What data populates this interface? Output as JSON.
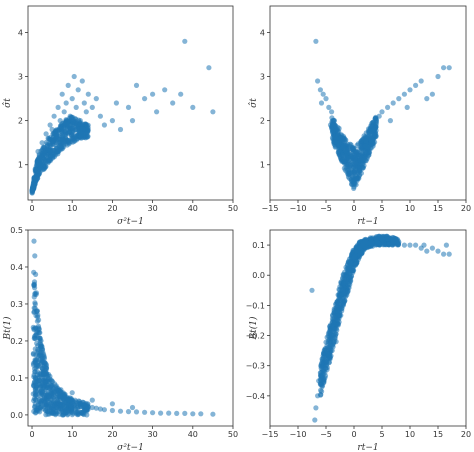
{
  "chart_data": [
    {
      "type": "scatter",
      "xlabel": "σ²t−1",
      "ylabel": "σ̂t",
      "xlim": [
        -1,
        50
      ],
      "ylim": [
        0.2,
        4.6
      ],
      "xticks": [
        0,
        10,
        20,
        30,
        40,
        50
      ],
      "yticks": [
        1,
        2,
        3,
        4
      ],
      "grid": false,
      "color": "#1f77b4",
      "points": [
        [
          0.3,
          0.5
        ],
        [
          0.5,
          0.7
        ],
        [
          0.8,
          0.9
        ],
        [
          1.2,
          1.0
        ],
        [
          1.5,
          1.3
        ],
        [
          2,
          1.1
        ],
        [
          2.5,
          1.5
        ],
        [
          3,
          1.4
        ],
        [
          3.5,
          1.7
        ],
        [
          4,
          1.6
        ],
        [
          4.5,
          1.9
        ],
        [
          5,
          1.8
        ],
        [
          5.5,
          2.1
        ],
        [
          6,
          1.7
        ],
        [
          6.5,
          2.3
        ],
        [
          7,
          2.0
        ],
        [
          7.5,
          2.6
        ],
        [
          8,
          2.2
        ],
        [
          8.5,
          2.4
        ],
        [
          9,
          2.8
        ],
        [
          9.5,
          2.1
        ],
        [
          10,
          2.5
        ],
        [
          10.5,
          3.0
        ],
        [
          11,
          2.3
        ],
        [
          11.5,
          2.7
        ],
        [
          12,
          2.0
        ],
        [
          12.5,
          2.9
        ],
        [
          13,
          2.4
        ],
        [
          13.5,
          2.2
        ],
        [
          14,
          2.6
        ],
        [
          15,
          2.3
        ],
        [
          16,
          2.5
        ],
        [
          17,
          2.1
        ],
        [
          18,
          1.9
        ],
        [
          20,
          2.0
        ],
        [
          21,
          2.4
        ],
        [
          22,
          1.8
        ],
        [
          24,
          2.3
        ],
        [
          25,
          2.0
        ],
        [
          26,
          2.8
        ],
        [
          28,
          2.5
        ],
        [
          30,
          2.6
        ],
        [
          31,
          2.2
        ],
        [
          33,
          2.7
        ],
        [
          35,
          2.4
        ],
        [
          37,
          2.6
        ],
        [
          38,
          3.8
        ],
        [
          40,
          2.3
        ],
        [
          44,
          3.2
        ],
        [
          45,
          2.2
        ]
      ],
      "dense_band": [
        [
          0,
          0.4
        ],
        [
          1,
          1.0
        ],
        [
          2,
          1.3
        ],
        [
          4,
          1.6
        ],
        [
          6,
          1.8
        ],
        [
          8,
          2.0
        ],
        [
          10,
          2.1
        ],
        [
          12,
          2.0
        ],
        [
          14,
          1.9
        ]
      ],
      "dense_band_low": [
        [
          0,
          0.35
        ],
        [
          1,
          0.6
        ],
        [
          2,
          0.8
        ],
        [
          4,
          1.0
        ],
        [
          6,
          1.2
        ],
        [
          8,
          1.4
        ],
        [
          10,
          1.5
        ],
        [
          12,
          1.6
        ],
        [
          14,
          1.6
        ]
      ]
    },
    {
      "type": "scatter",
      "xlabel": "rt−1",
      "ylabel": "σ̂t",
      "xlim": [
        -15,
        20
      ],
      "ylim": [
        0.2,
        4.6
      ],
      "xticks": [
        -15,
        -10,
        -5,
        0,
        5,
        10,
        15,
        20
      ],
      "yticks": [
        1,
        2,
        3,
        4
      ],
      "grid": false,
      "color": "#1f77b4",
      "points": [
        [
          -6.8,
          3.8
        ],
        [
          -6.5,
          2.9
        ],
        [
          -6,
          2.7
        ],
        [
          -5.5,
          2.6
        ],
        [
          -5,
          2.5
        ],
        [
          -4.5,
          2.3
        ],
        [
          -4,
          2.2
        ],
        [
          -3.5,
          2.0
        ],
        [
          -3,
          1.8
        ],
        [
          -2.5,
          1.6
        ],
        [
          -2,
          1.4
        ],
        [
          -1.5,
          1.2
        ],
        [
          -1,
          1.0
        ],
        [
          -0.5,
          0.8
        ],
        [
          0,
          0.5
        ],
        [
          0.5,
          0.7
        ],
        [
          1,
          0.9
        ],
        [
          1.5,
          1.1
        ],
        [
          2,
          1.3
        ],
        [
          2.5,
          1.4
        ],
        [
          3,
          1.6
        ],
        [
          3.5,
          1.8
        ],
        [
          4,
          2.0
        ],
        [
          5,
          2.2
        ],
        [
          6,
          2.3
        ],
        [
          7,
          2.4
        ],
        [
          8,
          2.5
        ],
        [
          9,
          2.6
        ],
        [
          10,
          2.7
        ],
        [
          11,
          2.8
        ],
        [
          12,
          2.9
        ],
        [
          13,
          2.5
        ],
        [
          14,
          2.6
        ],
        [
          15,
          3.0
        ],
        [
          16,
          3.2
        ],
        [
          17,
          3.2
        ],
        [
          -5.8,
          2.4
        ],
        [
          -4.2,
          1.9
        ],
        [
          -3.2,
          1.6
        ],
        [
          4.5,
          2.1
        ],
        [
          6.5,
          2.0
        ],
        [
          9.5,
          2.3
        ]
      ],
      "dense_band": [
        [
          -4,
          2.1
        ],
        [
          -3,
          1.9
        ],
        [
          -2,
          1.7
        ],
        [
          -1,
          1.5
        ],
        [
          0,
          1.4
        ],
        [
          1,
          1.5
        ],
        [
          2,
          1.7
        ],
        [
          3,
          1.9
        ],
        [
          4,
          2.1
        ]
      ],
      "dense_band_low": [
        [
          -4,
          1.6
        ],
        [
          -3,
          1.3
        ],
        [
          -2,
          1.0
        ],
        [
          -1,
          0.7
        ],
        [
          0,
          0.45
        ],
        [
          1,
          0.7
        ],
        [
          2,
          1.0
        ],
        [
          3,
          1.3
        ],
        [
          4,
          1.6
        ]
      ]
    },
    {
      "type": "scatter",
      "xlabel": "σ²t−1",
      "ylabel": "Bt(1)",
      "xlim": [
        -1,
        50
      ],
      "ylim": [
        -0.03,
        0.5
      ],
      "xticks": [
        0,
        10,
        20,
        30,
        40,
        50
      ],
      "yticks": [
        0.0,
        0.1,
        0.2,
        0.3,
        0.4,
        0.5
      ],
      "ytick_labels": [
        "0.0",
        "0.1",
        "0.2",
        "0.3",
        "0.4",
        "0.5"
      ],
      "grid": false,
      "color": "#1f77b4",
      "points": [
        [
          0.5,
          0.47
        ],
        [
          0.7,
          0.43
        ],
        [
          0.9,
          0.38
        ],
        [
          1.1,
          0.33
        ],
        [
          1.3,
          0.28
        ],
        [
          1.6,
          0.24
        ],
        [
          2,
          0.2
        ],
        [
          2.5,
          0.16
        ],
        [
          3,
          0.13
        ],
        [
          3.5,
          0.11
        ],
        [
          4,
          0.09
        ],
        [
          5,
          0.075
        ],
        [
          6,
          0.06
        ],
        [
          7,
          0.05
        ],
        [
          8,
          0.045
        ],
        [
          9,
          0.04
        ],
        [
          10,
          0.035
        ],
        [
          11,
          0.03
        ],
        [
          12,
          0.028
        ],
        [
          13,
          0.025
        ],
        [
          14,
          0.022
        ],
        [
          15,
          0.02
        ],
        [
          16,
          0.018
        ],
        [
          17,
          0.016
        ],
        [
          18,
          0.014
        ],
        [
          20,
          0.012
        ],
        [
          22,
          0.01
        ],
        [
          24,
          0.009
        ],
        [
          26,
          0.008
        ],
        [
          28,
          0.007
        ],
        [
          30,
          0.006
        ],
        [
          32,
          0.005
        ],
        [
          34,
          0.005
        ],
        [
          36,
          0.004
        ],
        [
          38,
          0.004
        ],
        [
          40,
          0.003
        ],
        [
          42,
          0.003
        ],
        [
          45,
          0.002
        ],
        [
          20,
          0.03
        ],
        [
          25,
          0.02
        ],
        [
          10,
          0.06
        ],
        [
          15,
          0.04
        ]
      ],
      "dense_band": [
        [
          0.3,
          0.42
        ],
        [
          1,
          0.33
        ],
        [
          2,
          0.22
        ],
        [
          3,
          0.16
        ],
        [
          4,
          0.12
        ],
        [
          6,
          0.08
        ],
        [
          8,
          0.06
        ],
        [
          10,
          0.045
        ],
        [
          14,
          0.03
        ]
      ],
      "dense_band_low": [
        [
          0.3,
          0.0
        ],
        [
          1,
          0.0
        ],
        [
          2,
          0.0
        ],
        [
          3,
          0.0
        ],
        [
          4,
          0.0
        ],
        [
          6,
          0.0
        ],
        [
          8,
          0.0
        ],
        [
          10,
          0.0
        ],
        [
          14,
          0.0
        ]
      ]
    },
    {
      "type": "scatter",
      "xlabel": "rt−1",
      "ylabel": "Bt(1)",
      "xlim": [
        -15,
        20
      ],
      "ylim": [
        -0.5,
        0.15
      ],
      "xticks": [
        -15,
        -10,
        -5,
        0,
        5,
        10,
        15,
        20
      ],
      "yticks": [
        -0.4,
        -0.3,
        -0.2,
        -0.1,
        0.0,
        0.1
      ],
      "ytick_labels": [
        "−0.4",
        "−0.3",
        "−0.2",
        "−0.1",
        "0.0",
        "0.1"
      ],
      "grid": false,
      "color": "#1f77b4",
      "points": [
        [
          -7,
          -0.48
        ],
        [
          -6.8,
          -0.44
        ],
        [
          -6.5,
          -0.4
        ],
        [
          -6,
          -0.36
        ],
        [
          -5.5,
          -0.32
        ],
        [
          -5,
          -0.28
        ],
        [
          -4.5,
          -0.24
        ],
        [
          -4,
          -0.2
        ],
        [
          -3.5,
          -0.16
        ],
        [
          -3,
          -0.12
        ],
        [
          -2.5,
          -0.08
        ],
        [
          -2,
          -0.05
        ],
        [
          -1.5,
          -0.02
        ],
        [
          -1,
          0.01
        ],
        [
          -0.5,
          0.04
        ],
        [
          0,
          0.06
        ],
        [
          0.5,
          0.08
        ],
        [
          1,
          0.09
        ],
        [
          1.5,
          0.1
        ],
        [
          2,
          0.11
        ],
        [
          3,
          0.12
        ],
        [
          4,
          0.12
        ],
        [
          5,
          0.12
        ],
        [
          6,
          0.12
        ],
        [
          7,
          0.11
        ],
        [
          8,
          0.11
        ],
        [
          9,
          0.1
        ],
        [
          10,
          0.1
        ],
        [
          11,
          0.1
        ],
        [
          12,
          0.09
        ],
        [
          13,
          0.08
        ],
        [
          14,
          0.09
        ],
        [
          15,
          0.08
        ],
        [
          16,
          0.07
        ],
        [
          17,
          0.07
        ],
        [
          -7.5,
          -0.05
        ],
        [
          -6.3,
          -0.35
        ],
        [
          -5.2,
          -0.34
        ],
        [
          -3.2,
          -0.22
        ],
        [
          12.5,
          0.1
        ],
        [
          16.5,
          0.1
        ]
      ],
      "dense_band": [
        [
          -6,
          -0.3
        ],
        [
          -5,
          -0.22
        ],
        [
          -4,
          -0.14
        ],
        [
          -3,
          -0.07
        ],
        [
          -2,
          0.0
        ],
        [
          -1,
          0.05
        ],
        [
          0,
          0.09
        ],
        [
          1,
          0.11
        ],
        [
          2,
          0.12
        ],
        [
          4,
          0.13
        ],
        [
          6,
          0.13
        ],
        [
          8,
          0.12
        ]
      ],
      "dense_band_low": [
        [
          -6,
          -0.4
        ],
        [
          -5,
          -0.33
        ],
        [
          -4,
          -0.26
        ],
        [
          -3,
          -0.18
        ],
        [
          -2,
          -0.11
        ],
        [
          -1,
          -0.05
        ],
        [
          0,
          0.02
        ],
        [
          1,
          0.06
        ],
        [
          2,
          0.09
        ],
        [
          4,
          0.1
        ],
        [
          6,
          0.1
        ],
        [
          8,
          0.1
        ]
      ]
    }
  ]
}
